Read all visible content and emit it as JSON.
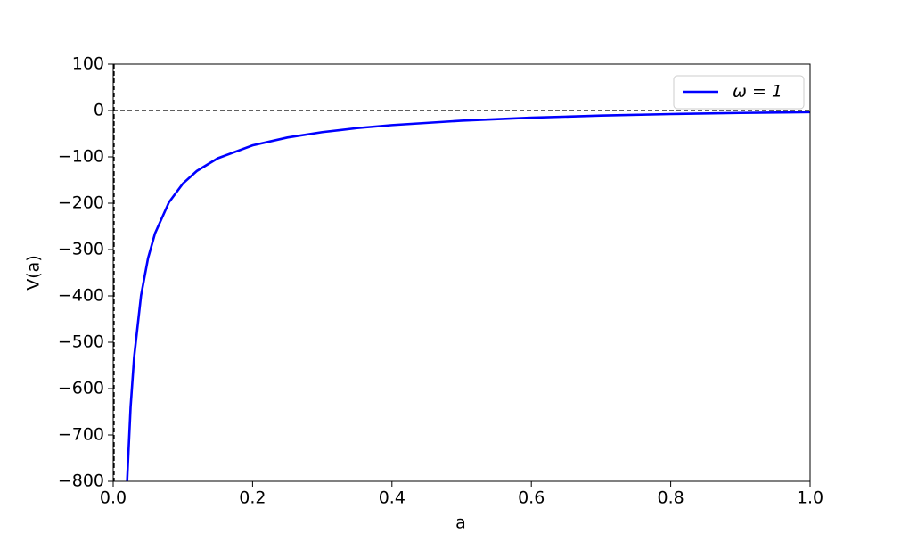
{
  "chart_data": {
    "type": "line",
    "xlabel": "a",
    "ylabel": "V(a)",
    "x": [
      0.02,
      0.025,
      0.03,
      0.04,
      0.05,
      0.06,
      0.08,
      0.1,
      0.12,
      0.15,
      0.2,
      0.25,
      0.3,
      0.35,
      0.4,
      0.5,
      0.6,
      0.7,
      0.8,
      0.9,
      1.0
    ],
    "series": [
      {
        "name": "ω = 1",
        "color": "#0000ff",
        "values": [
          -799.5,
          -639.4,
          -532.6,
          -399.0,
          -318.8,
          -265.2,
          -198.1,
          -157.6,
          -130.5,
          -103.1,
          -75.3,
          -58.3,
          -46.6,
          -38.0,
          -31.5,
          -22.0,
          -15.5,
          -11.0,
          -7.7,
          -5.3,
          -3.6
        ]
      }
    ],
    "xlim": [
      0,
      1
    ],
    "ylim": [
      -800,
      100
    ],
    "xticks": [
      {
        "value": 0,
        "label": "0.0"
      },
      {
        "value": 0.2,
        "label": "0.2"
      },
      {
        "value": 0.4,
        "label": "0.4"
      },
      {
        "value": 0.6,
        "label": "0.6"
      },
      {
        "value": 0.8,
        "label": "0.8"
      },
      {
        "value": 1,
        "label": "1.0"
      }
    ],
    "yticks": [
      {
        "value": -800,
        "label": "−800"
      },
      {
        "value": -700,
        "label": "−700"
      },
      {
        "value": -600,
        "label": "−600"
      },
      {
        "value": -500,
        "label": "−500"
      },
      {
        "value": -400,
        "label": "−400"
      },
      {
        "value": -300,
        "label": "−300"
      },
      {
        "value": -200,
        "label": "−200"
      },
      {
        "value": -100,
        "label": "−100"
      },
      0,
      100
    ],
    "reference_lines": {
      "y": 0,
      "x": 0
    },
    "legend": "upper right",
    "grid": false
  }
}
